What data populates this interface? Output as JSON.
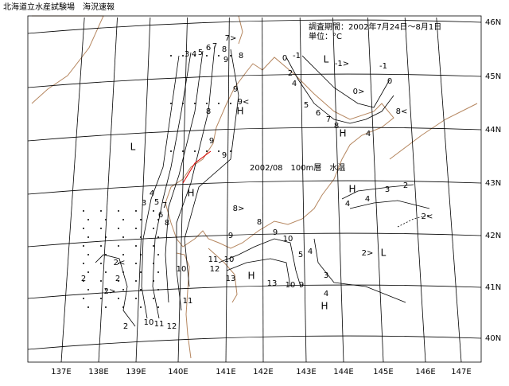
{
  "header": {
    "title": "北海道立水産試験場　海況速報"
  },
  "map": {
    "period": "調査期間：2002年7月24日～8月1日",
    "unit": "単位：°C",
    "caption": "2002/08　100m層　水温",
    "lat_labels": [
      "46N",
      "45N",
      "44N",
      "43N",
      "42N",
      "41N",
      "40N"
    ],
    "lon_labels": [
      "137E",
      "138E",
      "139E",
      "140E",
      "141E",
      "142E",
      "143E",
      "144E",
      "145E",
      "146E",
      "147E"
    ],
    "contour_labels": [
      "L",
      "H",
      "H",
      "H",
      "H",
      "H",
      "H",
      "L",
      "L",
      "3",
      "4",
      "5",
      "6",
      "7",
      "8",
      "7>",
      "9",
      "8",
      "9<",
      "9",
      "9",
      "8",
      "9",
      "3",
      "4",
      "5",
      "6",
      "8",
      "7",
      "2<",
      "2",
      "2",
      "2>",
      "2",
      "10",
      "11",
      "12",
      "10",
      "11",
      "0",
      "-1",
      "-1>",
      "-1",
      "0",
      "2",
      "4",
      "0>",
      "5",
      "6",
      "7",
      "8",
      "8<",
      "4",
      "8>",
      "8",
      "9",
      "10",
      "9",
      "11",
      "10",
      "12",
      "13",
      "13",
      "10",
      "9",
      "5",
      "4",
      "3",
      "4",
      "2",
      "3",
      "4",
      "4",
      "2<",
      "2>"
    ]
  }
}
